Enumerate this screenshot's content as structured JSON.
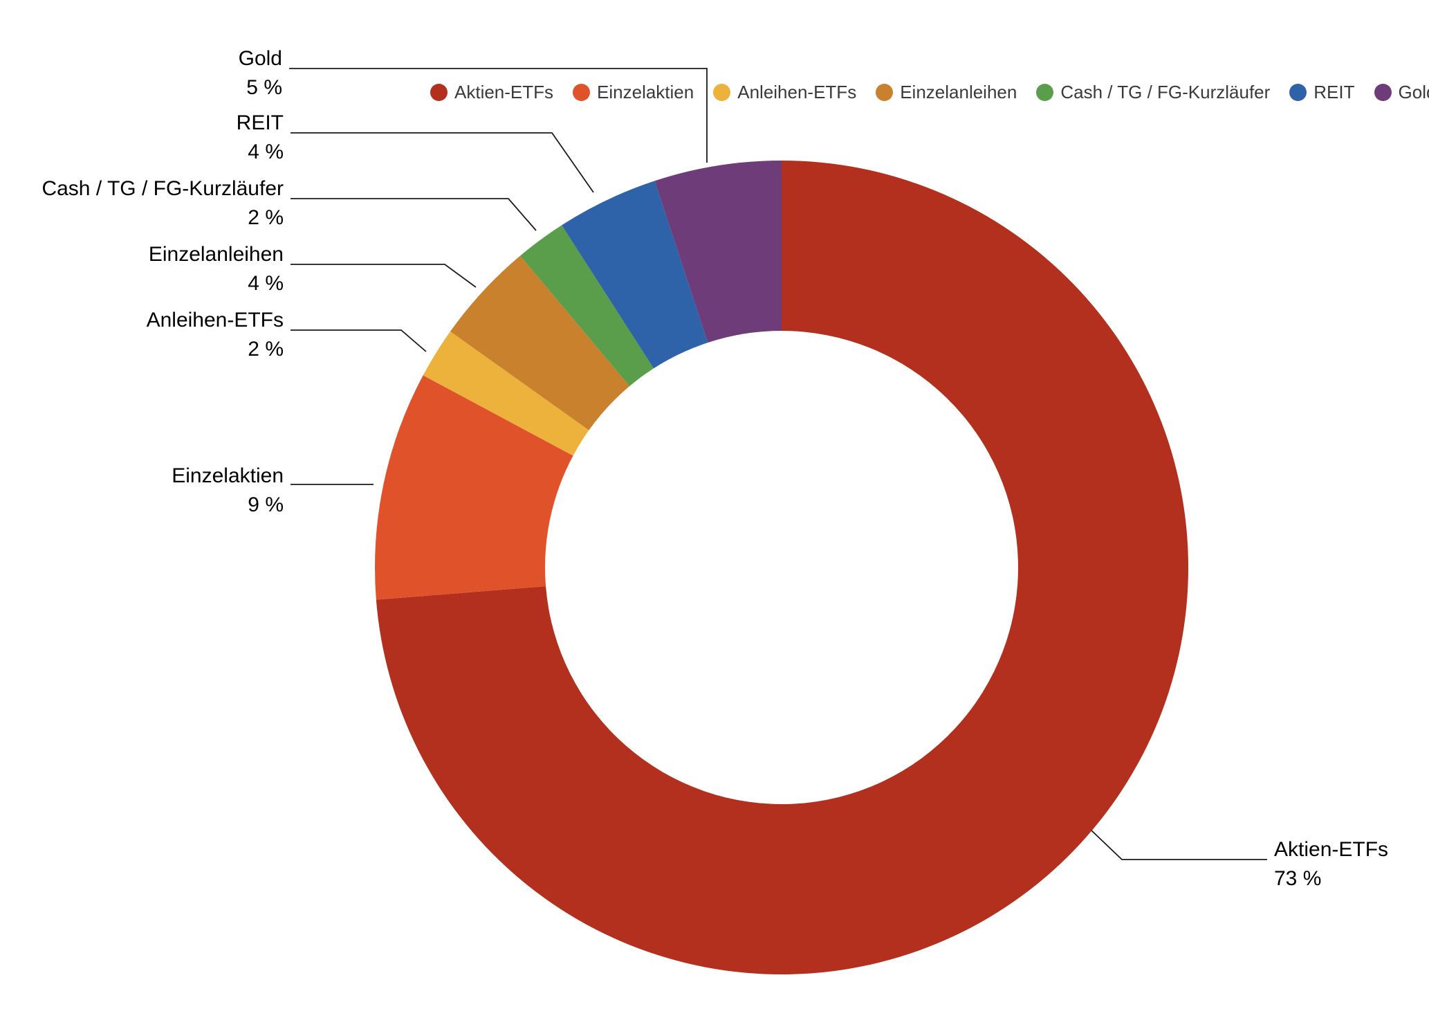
{
  "chart_data": {
    "type": "pie",
    "donut": true,
    "title": "",
    "categories": [
      "Aktien-ETFs",
      "Einzelaktien",
      "Anleihen-ETFs",
      "Einzelanleihen",
      "Cash / TG / FG-Kurzläufer",
      "REIT",
      "Gold"
    ],
    "values": [
      73,
      9,
      2,
      4,
      2,
      4,
      5
    ],
    "value_labels": [
      "73 %",
      "9 %",
      "2 %",
      "4 %",
      "2 %",
      "4 %",
      "5 %"
    ],
    "colors": [
      "#b2301d",
      "#e0532a",
      "#ecb23c",
      "#c9812e",
      "#5a9e4b",
      "#2e62a9",
      "#6d3c79"
    ],
    "legend_position": "top",
    "legend_text_color": "#3a3a3c",
    "label_text_color": "#000000",
    "leader_line_color": "#1a1a1a",
    "background": "#ffffff"
  }
}
